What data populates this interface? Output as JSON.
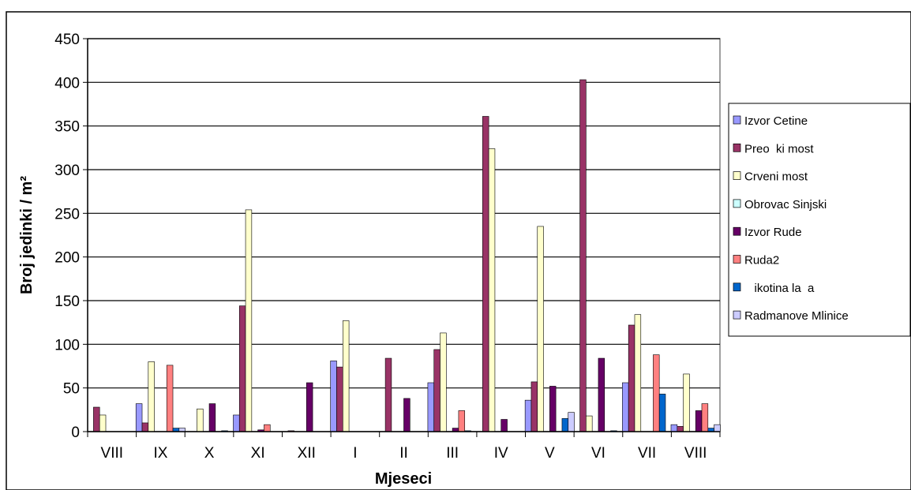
{
  "chart_data": {
    "type": "bar",
    "xlabel": "Mjeseci",
    "ylabel": "Broj jedinki / m²",
    "ylim": [
      0,
      450
    ],
    "yticks": [
      "0",
      "50",
      "100",
      "150",
      "200",
      "250",
      "300",
      "350",
      "400",
      "450"
    ],
    "grid": true,
    "legend_position": "right",
    "categories": [
      "VIII",
      "IX",
      "X",
      "XI",
      "XII",
      "I",
      "II",
      "III",
      "IV",
      "V",
      "VI",
      "VII",
      "VIII"
    ],
    "series": [
      {
        "name": "Izvor Cetine",
        "color": "#9999ff",
        "values": [
          0,
          32,
          0,
          19,
          0,
          81,
          0,
          56,
          0,
          36,
          0,
          56,
          8
        ]
      },
      {
        "name": "Preo  ki most",
        "color": "#993366",
        "values": [
          28,
          10,
          0,
          144,
          1,
          74,
          84,
          94,
          361,
          57,
          403,
          122,
          6
        ]
      },
      {
        "name": "Crveni most",
        "color": "#ffffcc",
        "values": [
          19,
          80,
          26,
          254,
          0,
          127,
          0,
          113,
          324,
          235,
          18,
          134,
          66
        ]
      },
      {
        "name": "Obrovac Sinjski",
        "color": "#ccffff",
        "values": [
          0,
          0,
          0,
          0,
          0,
          0,
          0,
          0,
          0,
          0,
          0,
          0,
          0
        ]
      },
      {
        "name": "Izvor Rude",
        "color": "#660066",
        "values": [
          0,
          0,
          32,
          2,
          56,
          0,
          38,
          4,
          14,
          52,
          84,
          0,
          24
        ]
      },
      {
        "name": "Ruda2",
        "color": "#ff8080",
        "values": [
          0,
          76,
          0,
          8,
          0,
          0,
          0,
          24,
          0,
          0,
          0,
          88,
          32
        ]
      },
      {
        "name": "   ikotina la  a",
        "color": "#0066cc",
        "values": [
          0,
          4,
          1,
          0,
          0,
          0,
          0,
          1,
          0,
          15,
          1,
          43,
          4
        ]
      },
      {
        "name": "Radmanove Mlinice",
        "color": "#ccccff",
        "values": [
          0,
          4,
          0,
          0,
          0,
          0,
          0,
          0,
          0,
          22,
          0,
          0,
          8
        ]
      }
    ]
  }
}
